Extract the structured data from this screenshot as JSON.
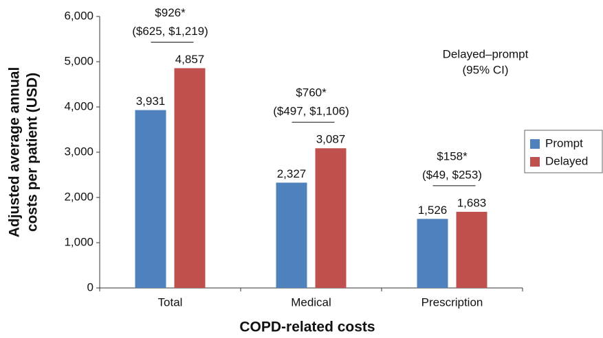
{
  "chart_data": {
    "type": "bar",
    "categories": [
      "Total",
      "Medical",
      "Prescription"
    ],
    "series": [
      {
        "name": "Prompt",
        "color": "#4f81bd",
        "values": [
          3931,
          2327,
          1526
        ],
        "value_labels": [
          "3,931",
          "2,327",
          "1,526"
        ]
      },
      {
        "name": "Delayed",
        "color": "#c0504d",
        "values": [
          4857,
          3087,
          1683
        ],
        "value_labels": [
          "4,857",
          "3,087",
          "1,683"
        ]
      }
    ],
    "annotations": [
      {
        "difference": "$926*",
        "ci": "($625, $1,219)"
      },
      {
        "difference": "$760*",
        "ci": "($497, $1,106)"
      },
      {
        "difference": "$158*",
        "ci": "($49, $253)"
      }
    ],
    "note": [
      "Delayed–prompt",
      "(95% CI)"
    ],
    "ylabel": [
      "Adjusted average annual",
      "costs per patient (USD)"
    ],
    "xlabel": "COPD-related costs",
    "ylim": [
      0,
      6000
    ],
    "yticks": [
      0,
      {
        "value": 1000,
        "label": "1,000"
      },
      {
        "value": 2000,
        "label": "2,000"
      },
      {
        "value": 3000,
        "label": "3,000"
      },
      {
        "value": 4000,
        "label": "4,000"
      },
      {
        "value": 5000,
        "label": "5,000"
      },
      {
        "value": 6000,
        "label": "6,000"
      }
    ],
    "legend": "right"
  }
}
